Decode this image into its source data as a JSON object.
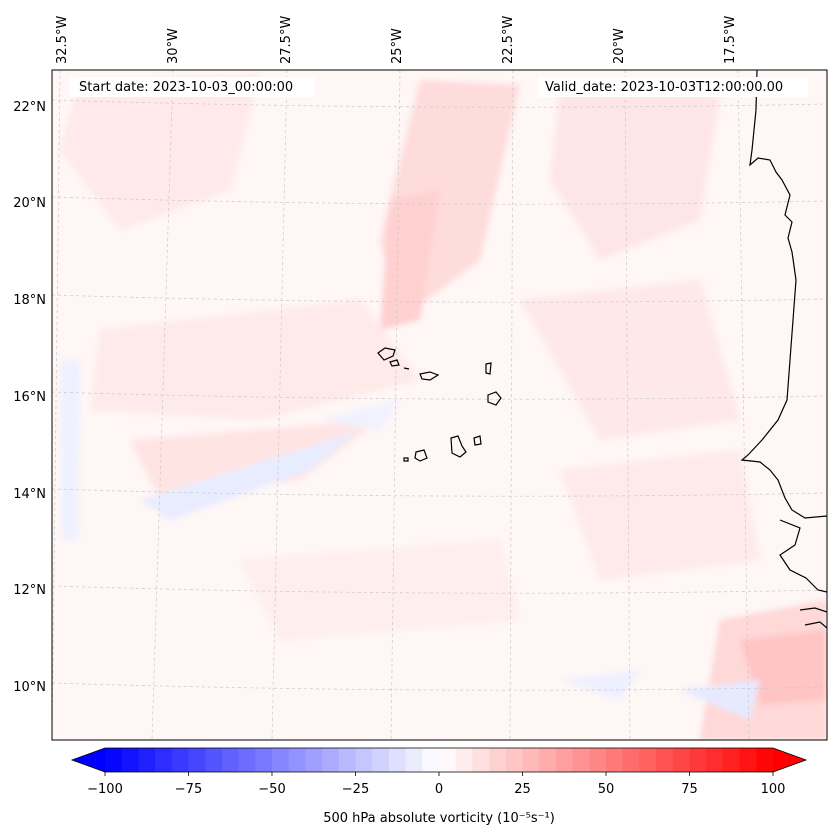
{
  "header": {
    "start_date": "Start date: 2023-10-03_00:00:00",
    "valid_date": "Valid_date: 2023-10-03T12:00:00.00"
  },
  "map": {
    "lon_labels": [
      "32.5°W",
      "30°W",
      "27.5°W",
      "25°W",
      "22.5°W",
      "20°W",
      "17.5°W"
    ],
    "lat_labels": [
      "22°N",
      "20°N",
      "18°N",
      "16°N",
      "14°N",
      "12°N",
      "10°N"
    ],
    "field": "500 hPa absolute vorticity",
    "gridlines": true,
    "projection": "Lambert conformal"
  },
  "colorbar": {
    "label": "500 hPa absolute vorticity (10⁻⁵s⁻¹)",
    "ticks": [
      "−100",
      "−75",
      "−50",
      "−25",
      "0",
      "25",
      "50",
      "75",
      "100"
    ],
    "range": [
      -100,
      100
    ],
    "colormap": "bwr",
    "extend": "both",
    "levels": 41
  },
  "colors": {
    "negative": "#0000ff",
    "zero": "#ffffff",
    "positive": "#ff0000",
    "coast": "#000000",
    "grid": "#c8c8c8"
  }
}
